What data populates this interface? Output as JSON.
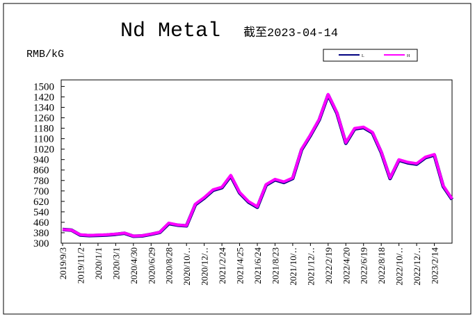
{
  "chart_data": {
    "type": "line",
    "title": "Nd Metal",
    "subtitle": "截至2023-04-14",
    "y_label": "RMB/kG",
    "categories": [
      "2019/9/3",
      null,
      "2019/11/2",
      null,
      "2020/1/1",
      null,
      "2020/3/1",
      null,
      "2020/4/30",
      null,
      "2020/6/29",
      null,
      "2020/8/28",
      null,
      "2020/10/‥",
      null,
      "2020/12/‥",
      null,
      "2021/2/24",
      null,
      "2021/4/25",
      null,
      "2021/6/24",
      null,
      "2021/8/23",
      null,
      "2021/10/‥",
      null,
      "2021/12/‥",
      null,
      "2022/2/19",
      null,
      "2022/4/20",
      null,
      "2022/6/19",
      null,
      "2022/8/18",
      null,
      "2022/10/‥",
      null,
      "2022/12/‥",
      null,
      "2023/2/14",
      null,
      null
    ],
    "series": [
      {
        "name": "L",
        "color": "#000080",
        "values": [
          405,
          400,
          362,
          358,
          360,
          363,
          368,
          376,
          353,
          356,
          368,
          383,
          450,
          438,
          433,
          595,
          645,
          705,
          725,
          815,
          685,
          615,
          575,
          745,
          785,
          765,
          795,
          1015,
          1125,
          1245,
          1435,
          1295,
          1065,
          1175,
          1185,
          1145,
          995,
          795,
          935,
          915,
          905,
          955,
          975,
          735,
          635
        ]
      },
      {
        "name": "H",
        "color": "#ff00ff",
        "values": [
          405,
          400,
          365,
          360,
          362,
          365,
          370,
          378,
          355,
          358,
          370,
          385,
          455,
          440,
          435,
          600,
          650,
          710,
          730,
          820,
          690,
          620,
          580,
          750,
          790,
          770,
          800,
          1020,
          1130,
          1250,
          1440,
          1300,
          1070,
          1180,
          1190,
          1150,
          1000,
          800,
          940,
          920,
          910,
          960,
          980,
          740,
          640
        ]
      }
    ],
    "ylim": [
      300,
      1550
    ],
    "yticks": [
      300,
      380,
      460,
      540,
      620,
      700,
      780,
      860,
      940,
      1020,
      1100,
      1180,
      1260,
      1340,
      1420,
      1500
    ],
    "grid": false,
    "legend": "top-right"
  }
}
